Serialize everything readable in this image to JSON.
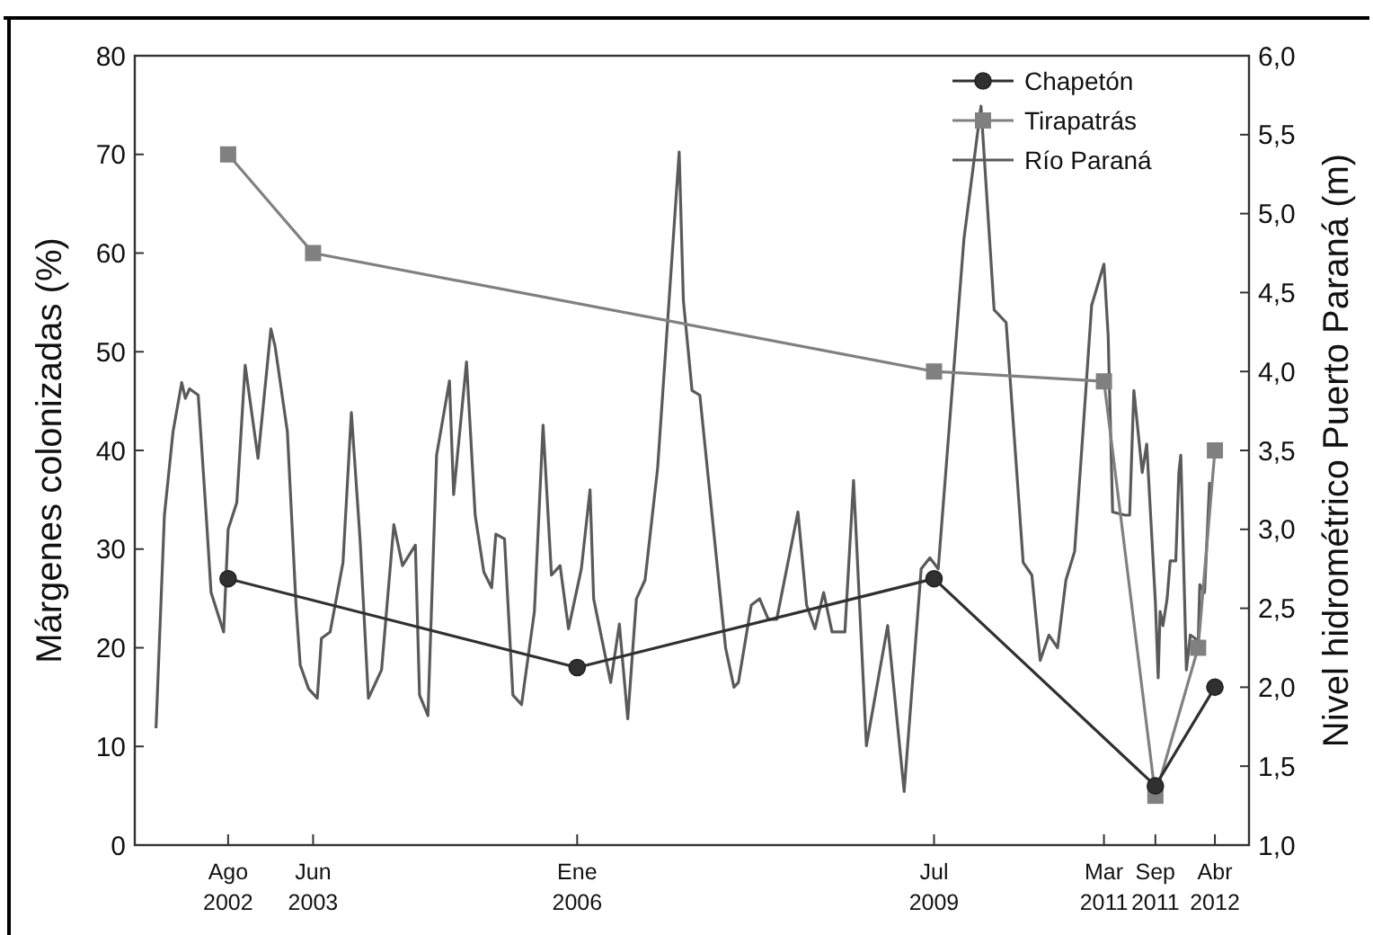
{
  "chart_data": {
    "type": "line",
    "ylabel": "Márgenes colonizadas (%)",
    "y2label": "Nivel hidrométrico Puerto Paraná (m)",
    "xlim": [
      "2001-09",
      "2012-08"
    ],
    "xticks": [
      {
        "value": "2002-08",
        "label": "Ago 2002"
      },
      {
        "value": "2003-06",
        "label": "Jun 2003"
      },
      {
        "value": "2006-01",
        "label": "Ene 2006"
      },
      {
        "value": "2009-07",
        "label": "Jul 2009"
      },
      {
        "value": "2011-03",
        "label": "Mar 2011"
      },
      {
        "value": "2011-09",
        "label": "Sep 2011"
      },
      {
        "value": "2012-04",
        "label": "Abr 2012"
      }
    ],
    "ylim": [
      0,
      80
    ],
    "yticks": [
      0,
      10,
      20,
      30,
      40,
      50,
      60,
      70,
      80
    ],
    "y2lim": [
      1,
      6
    ],
    "y2ticks": [
      {
        "value": 1,
        "label": "1,0"
      },
      {
        "value": 1.5,
        "label": "1,5"
      },
      {
        "value": 2,
        "label": "2,0"
      },
      {
        "value": 2.5,
        "label": "2,5"
      },
      {
        "value": 3,
        "label": "3,0"
      },
      {
        "value": 3.5,
        "label": "3,5"
      },
      {
        "value": 4,
        "label": "4,0"
      },
      {
        "value": 4.5,
        "label": "4,5"
      },
      {
        "value": 5,
        "label": "5,0"
      },
      {
        "value": 5.5,
        "label": "5,5"
      },
      {
        "value": 6,
        "label": "6,0"
      }
    ],
    "legend": "top right",
    "series": [
      {
        "name": "Chapetón",
        "color": "#303030",
        "marker": "circle",
        "x": [
          "2002-08",
          "2006-01",
          "2009-07",
          "2011-09",
          "2012-04"
        ],
        "values": [
          27,
          18,
          27,
          6,
          16
        ]
      },
      {
        "name": "Tirapatrás",
        "color": "#808080",
        "marker": "square",
        "x": [
          "2002-08",
          "2003-06",
          "2009-07",
          "2011-03",
          "2011-09",
          "2012-02",
          "2012-04"
        ],
        "values": [
          70,
          60,
          48,
          47,
          5,
          20,
          40
        ]
      },
      {
        "name": "Río Paraná",
        "color": "#5a5a5a",
        "marker": "none",
        "axis": "y2",
        "x": [
          "2001-11-16",
          "2001-12-16",
          "2002-01-16",
          "2002-02-16",
          "2002-03-01",
          "2002-03-16",
          "2002-04-16",
          "2002-05-16",
          "2002-06-01",
          "2002-07-16",
          "2002-08-01",
          "2002-09-01",
          "2002-10-01",
          "2002-11-16",
          "2003-01-01",
          "2003-01-16",
          "2003-03-01",
          "2003-04-01",
          "2003-04-16",
          "2003-05-16",
          "2003-06-16",
          "2003-07-01",
          "2003-08-01",
          "2003-09-16",
          "2003-10-16",
          "2003-11-16",
          "2003-12-16",
          "2004-02-01",
          "2004-03-16",
          "2004-04-16",
          "2004-06-01",
          "2004-06-16",
          "2004-07-16",
          "2004-08-16",
          "2004-10-01",
          "2004-10-16",
          "2004-12-01",
          "2005-01-01",
          "2005-02-01",
          "2005-03-01",
          "2005-03-16",
          "2005-04-16",
          "2005-05-16",
          "2005-06-16",
          "2005-08-01",
          "2005-09-01",
          "2005-10-01",
          "2005-11-01",
          "2005-12-01",
          "2006-01-16",
          "2006-02-16",
          "2006-03-01",
          "2006-05-01",
          "2006-06-01",
          "2006-07-01",
          "2006-08-01",
          "2006-09-01",
          "2006-10-16",
          "2007-01-01",
          "2007-01-16",
          "2007-02-16",
          "2007-03-16",
          "2007-06-16",
          "2007-07-16",
          "2007-08-01",
          "2007-09-16",
          "2007-10-16",
          "2007-11-16",
          "2007-12-16",
          "2008-03-01",
          "2008-04-01",
          "2008-05-01",
          "2008-06-01",
          "2008-07-01",
          "2008-08-16",
          "2008-09-16",
          "2008-11-01",
          "2009-01-16",
          "2009-03-16",
          "2009-05-16",
          "2009-06-16",
          "2009-07-16",
          "2009-10-16",
          "2009-12-16",
          "2010-02-01",
          "2010-03-16",
          "2010-05-16",
          "2010-06-16",
          "2010-07-16",
          "2010-08-16",
          "2010-09-16",
          "2010-10-16",
          "2010-11-16",
          "2010-12-16",
          "2011-01-16",
          "2011-03-01",
          "2011-03-16",
          "2011-04-01",
          "2011-05-16",
          "2011-06-01",
          "2011-06-16",
          "2011-07-16",
          "2011-08-01",
          "2011-09-01",
          "2011-09-11",
          "2011-09-18",
          "2011-09-28",
          "2011-10-13",
          "2011-10-24",
          "2011-11-13",
          "2011-11-24",
          "2011-12-01",
          "2011-12-21",
          "2012-01-04",
          "2012-01-21",
          "2012-02-01",
          "2012-02-07",
          "2012-02-24",
          "2012-03-13"
        ],
        "values": [
          1.74,
          3.09,
          3.62,
          3.93,
          3.83,
          3.89,
          3.85,
          3.05,
          2.6,
          2.35,
          3.0,
          3.17,
          4.04,
          3.45,
          4.27,
          4.16,
          3.62,
          2.52,
          2.14,
          1.99,
          1.93,
          2.31,
          2.35,
          2.79,
          3.74,
          2.94,
          1.93,
          2.11,
          3.03,
          2.77,
          2.9,
          1.95,
          1.82,
          3.47,
          3.94,
          3.22,
          4.06,
          3.09,
          2.73,
          2.63,
          2.97,
          2.94,
          1.95,
          1.89,
          2.48,
          3.66,
          2.71,
          2.77,
          2.37,
          2.75,
          3.25,
          2.56,
          2.03,
          2.4,
          1.8,
          2.56,
          2.68,
          3.39,
          5.39,
          4.45,
          3.88,
          3.85,
          2.25,
          2.0,
          2.03,
          2.52,
          2.56,
          2.43,
          2.43,
          3.11,
          2.52,
          2.37,
          2.6,
          2.35,
          2.35,
          3.31,
          1.63,
          2.39,
          1.34,
          2.75,
          2.82,
          2.75,
          4.84,
          5.68,
          4.39,
          4.31,
          2.79,
          2.71,
          2.17,
          2.33,
          2.25,
          2.68,
          2.86,
          3.62,
          4.42,
          4.68,
          4.23,
          3.11,
          3.09,
          3.09,
          3.88,
          3.36,
          3.54,
          2.54,
          2.06,
          2.48,
          2.39,
          2.56,
          2.8,
          2.8,
          3.36,
          3.47,
          2.11,
          2.33,
          2.31,
          2.27,
          2.65,
          2.6,
          3.3
        ]
      }
    ]
  }
}
